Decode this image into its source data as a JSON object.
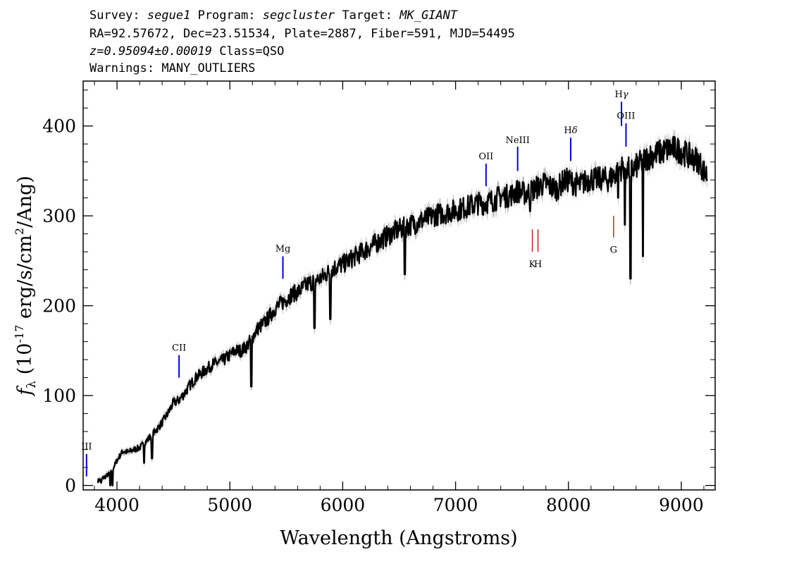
{
  "header": {
    "line1": {
      "survey_label": "Survey:",
      "survey": "segue1",
      "program_label": "Program:",
      "program": "segcluster",
      "target_label": "Target:",
      "target": "MK_GIANT"
    },
    "line2": "RA=92.57672, Dec=23.51534, Plate=2887, Fiber=591, MJD=54495",
    "line3": {
      "redshift": "z=0.95094±0.00019",
      "class": "Class=QSO"
    },
    "line4": "Warnings: MANY_OUTLIERS"
  },
  "chart_data": {
    "type": "line",
    "title": "",
    "xlabel": "Wavelength (Angstroms)",
    "ylabel": "f_λ (10^-17 erg/s/cm^2/Ang)",
    "xlim": [
      3700,
      9300
    ],
    "ylim": [
      -5,
      450
    ],
    "xticks": [
      4000,
      5000,
      6000,
      7000,
      8000,
      9000
    ],
    "yticks": [
      0,
      100,
      200,
      300,
      400
    ],
    "grid": false,
    "series": [
      {
        "style": "flux",
        "color": "#000000",
        "x": [
          3830,
          3900,
          3950,
          4000,
          4050,
          4100,
          4150,
          4200,
          4250,
          4300,
          4350,
          4400,
          4450,
          4500,
          4550,
          4600,
          4650,
          4700,
          4750,
          4800,
          4850,
          4900,
          4950,
          5000,
          5050,
          5100,
          5150,
          5200,
          5250,
          5300,
          5350,
          5400,
          5450,
          5500,
          5550,
          5600,
          5650,
          5700,
          5750,
          5800,
          5850,
          5900,
          5950,
          6000,
          6050,
          6100,
          6150,
          6200,
          6250,
          6300,
          6350,
          6400,
          6450,
          6500,
          6550,
          6600,
          6650,
          6700,
          6750,
          6800,
          6850,
          6900,
          6950,
          7000,
          7050,
          7100,
          7150,
          7200,
          7250,
          7300,
          7350,
          7400,
          7450,
          7500,
          7550,
          7600,
          7650,
          7700,
          7750,
          7800,
          7850,
          7900,
          7950,
          8000,
          8050,
          8100,
          8150,
          8200,
          8250,
          8300,
          8350,
          8400,
          8450,
          8500,
          8550,
          8600,
          8650,
          8700,
          8750,
          8800,
          8850,
          8900,
          8950,
          9000,
          9050,
          9100,
          9150,
          9200,
          9230
        ],
        "y": [
          5,
          10,
          15,
          28,
          38,
          37,
          40,
          42,
          48,
          55,
          62,
          70,
          80,
          92,
          95,
          103,
          112,
          120,
          125,
          130,
          135,
          137,
          140,
          145,
          150,
          150,
          155,
          165,
          175,
          180,
          188,
          197,
          202,
          207,
          213,
          215,
          220,
          225,
          228,
          230,
          235,
          240,
          244,
          246,
          250,
          254,
          258,
          262,
          266,
          270,
          274,
          278,
          282,
          285,
          287,
          290,
          292,
          295,
          297,
          300,
          302,
          303,
          305,
          306,
          308,
          310,
          312,
          314,
          314,
          316,
          318,
          322,
          322,
          324,
          328,
          325,
          326,
          330,
          334,
          336,
          332,
          330,
          338,
          340,
          336,
          334,
          338,
          342,
          340,
          342,
          340,
          345,
          352,
          355,
          350,
          355,
          360,
          365,
          368,
          370,
          372,
          375,
          374,
          372,
          368,
          365,
          362,
          350,
          345
        ]
      },
      {
        "style": "absorption_dips",
        "color": "#000000",
        "x": [
          3820,
          3860,
          3940,
          3960,
          4240,
          4310,
          5190,
          5750,
          5890,
          6550,
          7660,
          8440,
          8500,
          8550,
          8660
        ],
        "y": [
          5,
          3,
          0,
          0,
          25,
          30,
          110,
          175,
          185,
          235,
          305,
          320,
          290,
          230,
          255
        ]
      }
    ],
    "annotations": {
      "blue_lines": [
        {
          "label": "III",
          "wavelength": 3730,
          "ymin": 10,
          "ymax": 35,
          "label_y": 40
        },
        {
          "label": "CII",
          "wavelength": 4550,
          "ymin": 120,
          "ymax": 145,
          "label_y": 150
        },
        {
          "label": "Mg",
          "wavelength": 5470,
          "ymin": 230,
          "ymax": 255,
          "label_y": 260
        },
        {
          "label": "OII",
          "wavelength": 7270,
          "ymin": 333,
          "ymax": 358,
          "label_y": 363
        },
        {
          "label": "NeIII",
          "wavelength": 7550,
          "ymin": 350,
          "ymax": 377,
          "label_y": 381
        },
        {
          "label": "Hδ",
          "wavelength": 8020,
          "ymin": 361,
          "ymax": 387,
          "label_y": 392
        },
        {
          "label": "Hγ",
          "wavelength": 8470,
          "ymin": 400,
          "ymax": 427,
          "label_y": 432
        },
        {
          "label": "OIII",
          "wavelength": 8510,
          "ymin": 377,
          "ymax": 403,
          "label_y": 408
        }
      ],
      "red_lines": [
        {
          "label": "K",
          "wavelength": 7680,
          "ymin": 260,
          "ymax": 285,
          "label_y": 243
        },
        {
          "label": "H",
          "wavelength": 7730,
          "ymin": 260,
          "ymax": 285,
          "label_y": 243
        },
        {
          "label": "G",
          "wavelength": 8400,
          "ymin": 276,
          "ymax": 300,
          "label_y": 259
        }
      ],
      "colors": {
        "blue": "#0000dd",
        "red": "#cc0000",
        "error_band": "#b8b8b8"
      }
    }
  }
}
